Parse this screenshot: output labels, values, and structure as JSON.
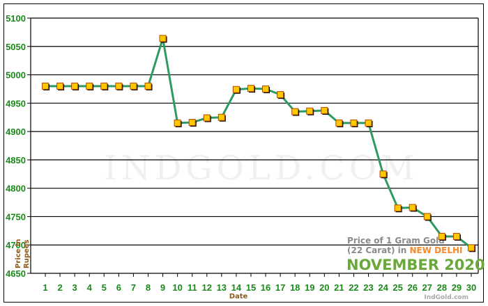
{
  "chart_data": {
    "type": "line",
    "title": "Price of 1 Gram Gold (22 Carat) in NEW DELHI",
    "subtitle": "NOVEMBER 2020",
    "xlabel": "Date",
    "ylabel": "Price in Rupees",
    "ylim": [
      4650,
      5100
    ],
    "yticks": [
      4650,
      4700,
      4750,
      4800,
      4850,
      4900,
      4950,
      5000,
      5050,
      5100
    ],
    "grid": true,
    "categories": [
      "1",
      "2",
      "3",
      "4",
      "5",
      "6",
      "7",
      "8",
      "9",
      "10",
      "11",
      "12",
      "13",
      "14",
      "15",
      "16",
      "17",
      "18",
      "19",
      "20",
      "21",
      "22",
      "23",
      "24",
      "25",
      "26",
      "27",
      "28",
      "29",
      "30"
    ],
    "series": [
      {
        "name": "Price of 1 Gram Gold (22 Carat)",
        "values": [
          4980,
          4980,
          4980,
          4980,
          4980,
          4980,
          4980,
          4980,
          5064,
          4915,
          4916,
          4924,
          4925,
          4974,
          4976,
          4975,
          4965,
          4935,
          4936,
          4937,
          4915,
          4915,
          4915,
          4825,
          4765,
          4766,
          4750,
          4715,
          4715,
          4695
        ]
      }
    ],
    "colors": {
      "line": "#2e9a62",
      "marker_fill": "#ffc800",
      "marker_border": "#b04a00",
      "tick_text": "#1a8a1a",
      "axis_title": "#8b5a1e"
    }
  },
  "labels": {
    "title_line1": "Price of 1 Gram Gold",
    "title_line2_prefix": "(22 Carat) in ",
    "city": "NEW DELHI",
    "month": "NOVEMBER 2020",
    "xlabel": "Date",
    "ylabel_line1": "Price in",
    "ylabel_line2": "Rupees",
    "watermark": "INDGOLD.COM",
    "credit": "IndGold.com"
  }
}
